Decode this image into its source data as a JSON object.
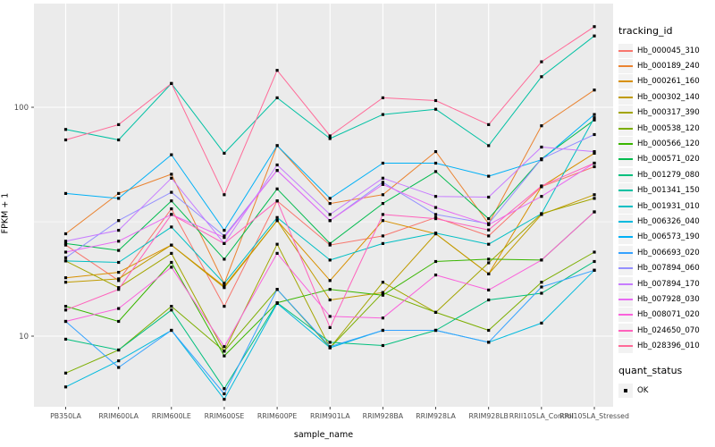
{
  "chart_data": {
    "type": "line",
    "x_label": "sample_name",
    "y_label": "FPKM + 1",
    "y_scale": "log10",
    "y_axis_ticks": [
      10,
      100
    ],
    "y_minor_gridlines": [
      31.6
    ],
    "y_range_approx": [
      4.9,
      284
    ],
    "grid": "on",
    "panel_bg": "#EBEBEB",
    "grid_color": "#FFFFFF",
    "tick_color": "#333333",
    "tick_label_color": "#4D4D4D",
    "point_color": "#000000",
    "point_shape": "filled-square",
    "legend_position": "right",
    "legend_title": "tracking_id",
    "point_legend": {
      "title": "quant_status",
      "label": "OK"
    },
    "categories": [
      "PB350LA",
      "RRIM600LA",
      "RRIM600LE",
      "RRIM600SE",
      "RRIM600PE",
      "RRIM901LA",
      "RRIM928BA",
      "RRIM928LA",
      "RRIM928LB",
      "RRII105LA_Control",
      "RRII105LA_Stressed"
    ],
    "series": [
      {
        "tracking_id": "Hb_000045_310",
        "color": "#F8766D",
        "fpkm_plus_1": [
          25,
          17.5,
          36,
          13.5,
          39,
          25,
          27.4,
          33,
          27.4,
          45,
          55
        ]
      },
      {
        "tracking_id": "Hb_000189_240",
        "color": "#EA8331",
        "fpkm_plus_1": [
          28,
          42,
          51,
          17,
          68,
          38,
          41.5,
          64,
          31,
          83,
          119
        ]
      },
      {
        "tracking_id": "Hb_000261_160",
        "color": "#D89000",
        "fpkm_plus_1": [
          18,
          19,
          25,
          16.5,
          32,
          17.5,
          32,
          28,
          18.7,
          45,
          63
        ]
      },
      {
        "tracking_id": "Hb_000302_140",
        "color": "#C09B00",
        "fpkm_plus_1": [
          17.2,
          17.8,
          25,
          16.3,
          32,
          14.4,
          15.5,
          28,
          18.7,
          34,
          41.5
        ]
      },
      {
        "tracking_id": "Hb_000317_390",
        "color": "#A3A500",
        "fpkm_plus_1": [
          21.3,
          16.3,
          23,
          8.6,
          25.2,
          8.9,
          17.2,
          12.7,
          20.9,
          34.3,
          40
        ]
      },
      {
        "tracking_id": "Hb_000538_120",
        "color": "#7CAE00",
        "fpkm_plus_1": [
          6.9,
          8.7,
          13.5,
          8.6,
          16,
          8.9,
          15.5,
          12.7,
          10.6,
          17.2,
          23.3
        ]
      },
      {
        "tracking_id": "Hb_000566_120",
        "color": "#39B600",
        "fpkm_plus_1": [
          13.5,
          11.6,
          21,
          8.2,
          14,
          16,
          15.1,
          21.2,
          21.7,
          21.5,
          34.9
        ]
      },
      {
        "tracking_id": "Hb_000571_020",
        "color": "#00BB4E",
        "fpkm_plus_1": [
          25.4,
          23.7,
          39,
          21.7,
          44,
          25.4,
          38,
          52.4,
          32.6,
          59.5,
          88
        ]
      },
      {
        "tracking_id": "Hb_001279_080",
        "color": "#00BF7D",
        "fpkm_plus_1": [
          9.7,
          8.7,
          13,
          5.9,
          14,
          9.4,
          9.1,
          10.6,
          14.4,
          15.4,
          21.2
        ]
      },
      {
        "tracking_id": "Hb_001341_150",
        "color": "#00C1A3",
        "fpkm_plus_1": [
          80,
          72,
          127,
          63,
          110,
          73,
          93,
          98,
          68,
          136,
          205
        ]
      },
      {
        "tracking_id": "Hb_001931_010",
        "color": "#00BFC4",
        "fpkm_plus_1": [
          21.3,
          21,
          30,
          17,
          33,
          21.5,
          25.4,
          28.2,
          25.2,
          34.3,
          90
        ]
      },
      {
        "tracking_id": "Hb_006326_040",
        "color": "#00BADE",
        "fpkm_plus_1": [
          6.0,
          7.8,
          10.6,
          5.3,
          13.9,
          8.9,
          10.6,
          10.6,
          9.4,
          11.4,
          19.4
        ]
      },
      {
        "tracking_id": "Hb_006573_190",
        "color": "#00B0F6",
        "fpkm_plus_1": [
          42,
          40,
          62,
          29,
          68,
          40,
          57,
          57,
          50,
          59,
          93
        ]
      },
      {
        "tracking_id": "Hb_006693_020",
        "color": "#35A2FF",
        "fpkm_plus_1": [
          11.6,
          7.3,
          10.6,
          5.6,
          16,
          9.0,
          10.6,
          10.6,
          9.4,
          16.4,
          19.4
        ]
      },
      {
        "tracking_id": "Hb_007894_060",
        "color": "#9590FF",
        "fpkm_plus_1": [
          22,
          32,
          42.5,
          27.4,
          53,
          32,
          47,
          34,
          31,
          59.5,
          76
        ]
      },
      {
        "tracking_id": "Hb_007894_170",
        "color": "#C77CFF",
        "fpkm_plus_1": [
          26,
          29,
          49,
          25.4,
          56,
          34,
          49,
          40.8,
          40.5,
          67,
          64
        ]
      },
      {
        "tracking_id": "Hb_007928_030",
        "color": "#E76BF3",
        "fpkm_plus_1": [
          23.3,
          26,
          34,
          27,
          53,
          32,
          46,
          36.5,
          30.7,
          40.8,
          57
        ]
      },
      {
        "tracking_id": "Hb_008071_020",
        "color": "#FA62DB",
        "fpkm_plus_1": [
          11.6,
          13.2,
          20,
          9.0,
          23,
          12.2,
          12.0,
          18.5,
          15.9,
          21.5,
          34.9
        ]
      },
      {
        "tracking_id": "Hb_024650_070",
        "color": "#FF62BC",
        "fpkm_plus_1": [
          13,
          16,
          34,
          25.4,
          39,
          10.9,
          34,
          32.6,
          29.1,
          45.3,
          57
        ]
      },
      {
        "tracking_id": "Hb_028396_010",
        "color": "#FF6A98",
        "fpkm_plus_1": [
          72,
          84,
          127,
          41.5,
          145,
          75,
          110,
          107,
          84,
          158,
          225
        ]
      }
    ]
  }
}
